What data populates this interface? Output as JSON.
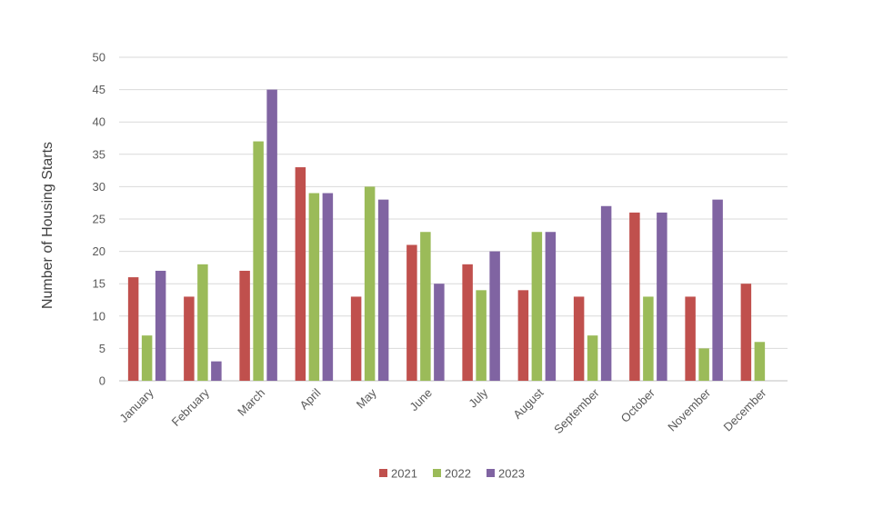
{
  "chart_data": {
    "type": "bar",
    "title": "",
    "xlabel": "",
    "ylabel": "Number of Housing Starts",
    "ylim": [
      0,
      50
    ],
    "yticks": [
      0,
      5,
      10,
      15,
      20,
      25,
      30,
      35,
      40,
      45,
      50
    ],
    "grid": true,
    "legend_position": "bottom",
    "categories": [
      "January",
      "February",
      "March",
      "April",
      "May",
      "June",
      "July",
      "August",
      "September",
      "October",
      "November",
      "December"
    ],
    "series": [
      {
        "name": "2021",
        "color": "#c0504d",
        "values": [
          16,
          13,
          17,
          33,
          13,
          21,
          18,
          14,
          13,
          26,
          13,
          15
        ]
      },
      {
        "name": "2022",
        "color": "#9bbb59",
        "values": [
          7,
          18,
          37,
          29,
          30,
          23,
          14,
          23,
          7,
          13,
          5,
          6
        ]
      },
      {
        "name": "2023",
        "color": "#8064a2",
        "values": [
          17,
          3,
          45,
          29,
          28,
          15,
          20,
          23,
          27,
          26,
          28,
          null
        ]
      }
    ]
  }
}
